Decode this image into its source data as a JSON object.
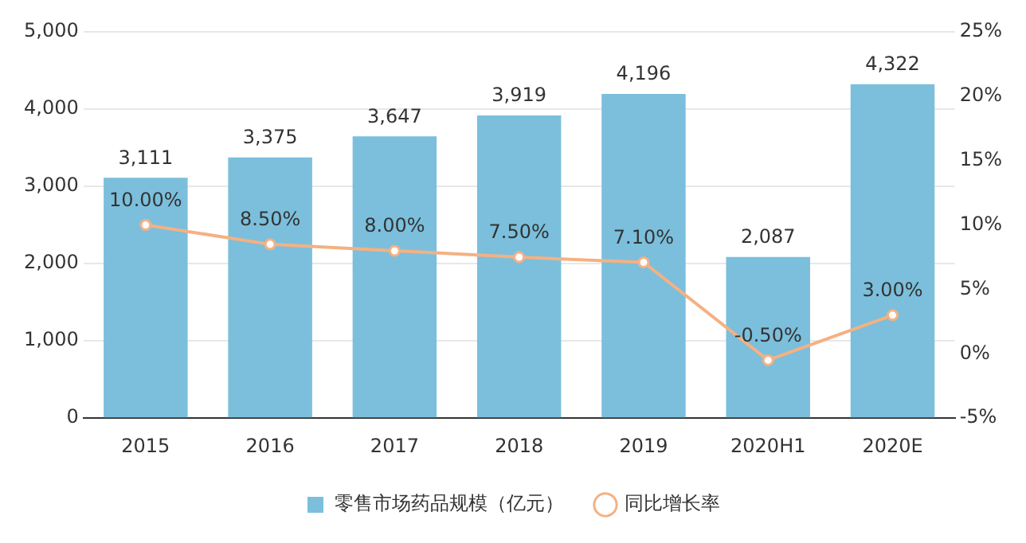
{
  "chart_data": {
    "type": "bar",
    "categories": [
      "2015",
      "2016",
      "2017",
      "2018",
      "2019",
      "2020H1",
      "2020E"
    ],
    "series": [
      {
        "name": "零售市场药品规模（亿元）",
        "color": "#7bbfdc",
        "values": [
          3111,
          3375,
          3647,
          3919,
          4196,
          2087,
          4322
        ],
        "value_labels": [
          "3,111",
          "3,375",
          "3,647",
          "3,919",
          "4,196",
          "2,087",
          "4,322"
        ]
      },
      {
        "name": "同比增长率",
        "type": "line",
        "axis": "y2",
        "color": "#f4b183",
        "values": [
          10,
          8.5,
          8,
          7.5,
          7.1,
          -0.5,
          3
        ],
        "value_labels": [
          "10.00%",
          "8.50%",
          "8.00%",
          "7.50%",
          "7.10%",
          "-0.50%",
          "3.00%"
        ]
      }
    ],
    "ylim": [
      0,
      5000
    ],
    "yticks": [
      0,
      {
        "value": 1000,
        "label": "1,000"
      },
      {
        "value": 2000,
        "label": "2,000"
      },
      {
        "value": 3000,
        "label": "3,000"
      },
      {
        "value": 4000,
        "label": "4,000"
      },
      {
        "value": 5000,
        "label": "5,000"
      }
    ],
    "y2lim": [
      -5,
      25
    ],
    "y2ticks": [
      {
        "value": -5,
        "label": "-5%"
      },
      {
        "value": 0,
        "label": "0%"
      },
      {
        "value": 5,
        "label": "5%"
      },
      {
        "value": 10,
        "label": "10%"
      },
      {
        "value": 15,
        "label": "15%"
      },
      {
        "value": 20,
        "label": "20%"
      },
      {
        "value": 25,
        "label": "25%"
      }
    ],
    "grid": "y",
    "legend": "bottom",
    "marker": "circle"
  }
}
